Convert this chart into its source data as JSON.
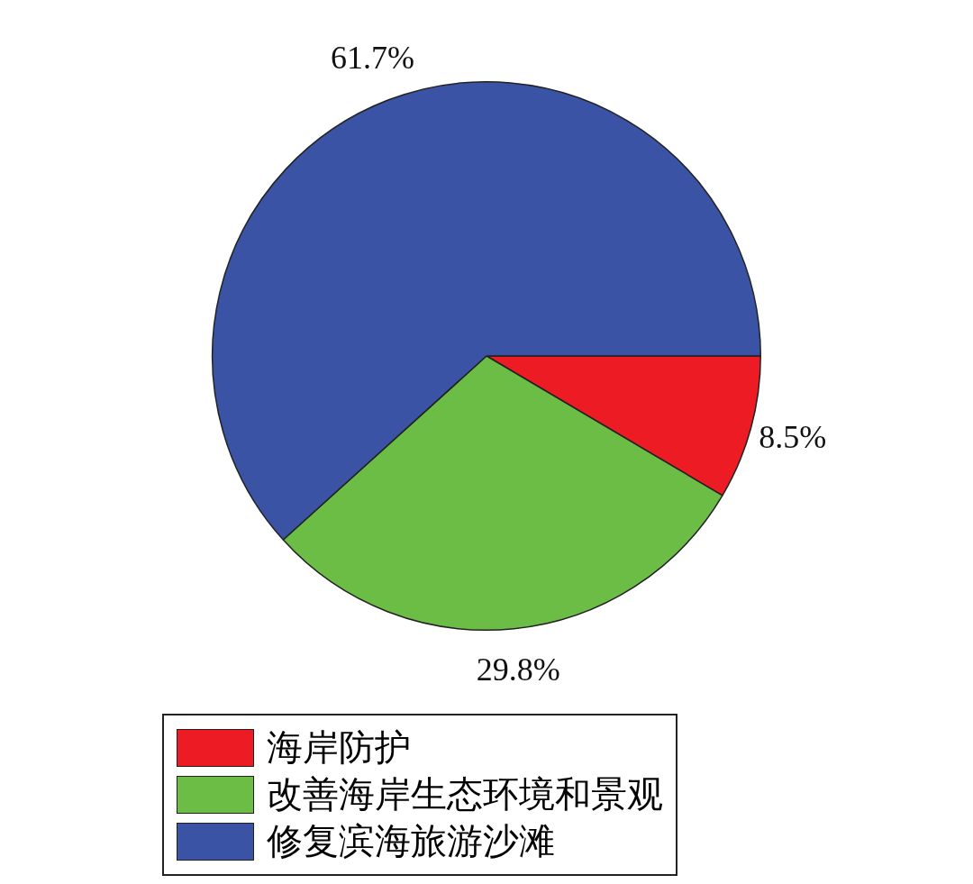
{
  "chart_data": {
    "type": "pie",
    "categories": [
      "海岸防护",
      "改善海岸生态环境和景观",
      "修复滨海旅游沙滩"
    ],
    "values": [
      8.5,
      29.8,
      61.7
    ],
    "value_labels": [
      "8.5%",
      "29.8%",
      "61.7%"
    ],
    "colors": [
      "#ed1c24",
      "#6cbd45",
      "#3a53a4"
    ],
    "legend": "bottom"
  }
}
